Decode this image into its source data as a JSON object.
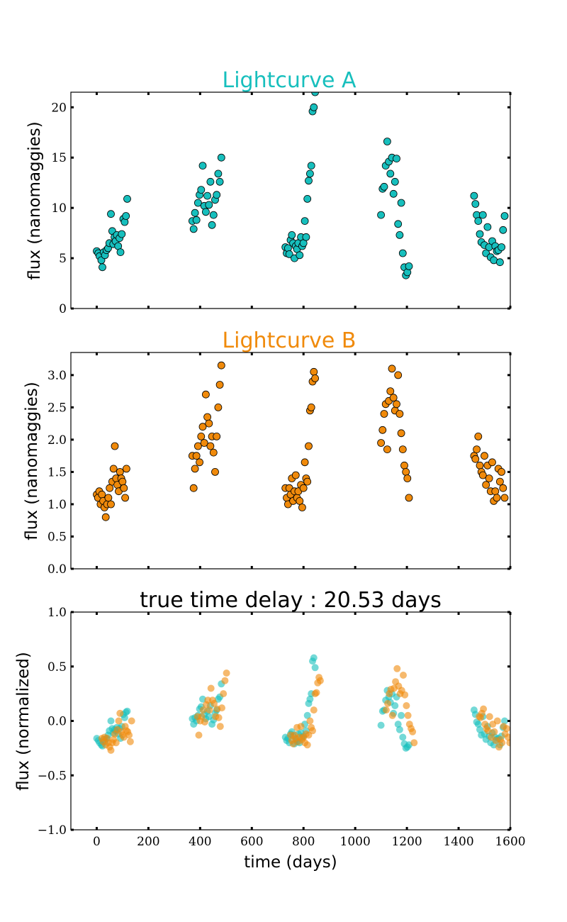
{
  "figure": {
    "background": "#ffffff"
  },
  "colors": {
    "teal": "#17bfbd",
    "orange": "#f08a0b"
  },
  "chart_data": [
    {
      "type": "scatter",
      "title": "Lightcurve A",
      "title_color": "#17bfbd",
      "xlabel": "",
      "ylabel": "flux (nanomaggies)",
      "xlim": [
        -100,
        1600
      ],
      "ylim": [
        0,
        21.5
      ],
      "xticks": [
        0,
        200,
        400,
        600,
        800,
        1000,
        1200,
        1400,
        1600
      ],
      "xtick_labels": [],
      "yticks": [
        0,
        5,
        10,
        15,
        20
      ],
      "ytick_labels": [
        "0",
        "5",
        "10",
        "15",
        "20"
      ],
      "grid": false,
      "series": [
        {
          "marker_fill": "#17bfbd",
          "marker_edge": "#000000",
          "x": [
            0,
            6,
            11,
            18,
            22,
            27,
            32,
            38,
            44,
            49,
            55,
            60,
            64,
            69,
            73,
            78,
            83,
            88,
            92,
            97,
            103,
            108,
            113,
            118,
            370,
            375,
            380,
            386,
            392,
            398,
            404,
            410,
            416,
            422,
            428,
            434,
            440,
            446,
            452,
            458,
            464,
            470,
            476,
            482,
            730,
            735,
            740,
            745,
            750,
            755,
            760,
            765,
            770,
            775,
            780,
            785,
            790,
            795,
            800,
            805,
            810,
            815,
            820,
            825,
            830,
            835,
            840,
            845,
            1100,
            1106,
            1112,
            1118,
            1124,
            1130,
            1136,
            1142,
            1148,
            1154,
            1160,
            1166,
            1172,
            1178,
            1184,
            1190,
            1196,
            1202,
            1208,
            1460,
            1465,
            1470,
            1476,
            1482,
            1488,
            1494,
            1500,
            1506,
            1512,
            1518,
            1524,
            1530,
            1536,
            1542,
            1548,
            1554,
            1560,
            1566,
            1572,
            1578
          ],
          "y": [
            5.7,
            5.5,
            5.2,
            4.8,
            4.1,
            5.6,
            5.3,
            5.8,
            6.0,
            6.5,
            9.4,
            7.7,
            6.4,
            7.1,
            6.7,
            7.3,
            6.2,
            7.0,
            5.6,
            7.4,
            8.9,
            8.6,
            9.2,
            10.9,
            8.7,
            7.9,
            9.5,
            8.8,
            10.5,
            11.3,
            11.8,
            14.2,
            10.2,
            9.6,
            11.2,
            10.3,
            12.6,
            8.3,
            9.3,
            10.8,
            11.3,
            13.4,
            12.6,
            15.0,
            6.1,
            5.5,
            6.0,
            5.4,
            6.8,
            7.3,
            6.5,
            5.0,
            6.2,
            5.9,
            6.5,
            5.3,
            7.1,
            6.2,
            6.5,
            8.7,
            7.1,
            10.9,
            12.7,
            13.4,
            14.2,
            19.6,
            20.0,
            21.5,
            9.3,
            11.9,
            12.1,
            14.2,
            16.6,
            14.6,
            13.4,
            15.0,
            11.4,
            12.6,
            14.9,
            8.4,
            7.3,
            10.5,
            5.5,
            4.1,
            3.3,
            3.6,
            4.2,
            11.2,
            10.4,
            9.3,
            8.7,
            7.4,
            6.6,
            9.3,
            6.3,
            5.5,
            8.1,
            6.1,
            5.1,
            6.7,
            4.8,
            6.2,
            5.7,
            5.8,
            4.6,
            6.1,
            7.8,
            9.2
          ]
        }
      ]
    },
    {
      "type": "scatter",
      "title": "Lightcurve B",
      "title_color": "#f08a0b",
      "xlabel": "",
      "ylabel": "flux (nanomaggies)",
      "xlim": [
        -100,
        1600
      ],
      "ylim": [
        0,
        3.35
      ],
      "xticks": [
        0,
        200,
        400,
        600,
        800,
        1000,
        1200,
        1400,
        1600
      ],
      "xtick_labels": [],
      "yticks": [
        0.0,
        0.5,
        1.0,
        1.5,
        2.0,
        2.5,
        3.0
      ],
      "ytick_labels": [
        "0.0",
        "0.5",
        "1.0",
        "1.5",
        "2.0",
        "2.5",
        "3.0"
      ],
      "grid": false,
      "series": [
        {
          "marker_fill": "#f08a0b",
          "marker_edge": "#000000",
          "x": [
            0,
            5,
            10,
            15,
            20,
            25,
            30,
            35,
            40,
            45,
            50,
            55,
            60,
            65,
            70,
            75,
            80,
            85,
            90,
            95,
            100,
            105,
            110,
            115,
            370,
            375,
            380,
            386,
            392,
            398,
            404,
            410,
            416,
            422,
            428,
            434,
            440,
            446,
            452,
            458,
            464,
            470,
            476,
            482,
            730,
            735,
            740,
            745,
            750,
            755,
            760,
            765,
            770,
            775,
            780,
            785,
            790,
            795,
            800,
            805,
            810,
            815,
            820,
            825,
            830,
            835,
            840,
            845,
            1100,
            1106,
            1112,
            1118,
            1124,
            1130,
            1136,
            1142,
            1148,
            1154,
            1160,
            1166,
            1172,
            1178,
            1184,
            1190,
            1196,
            1202,
            1208,
            1460,
            1465,
            1470,
            1476,
            1482,
            1488,
            1494,
            1500,
            1506,
            1512,
            1518,
            1524,
            1530,
            1536,
            1542,
            1548,
            1554,
            1560,
            1566,
            1572,
            1578
          ],
          "y": [
            1.15,
            1.1,
            1.2,
            1.0,
            1.15,
            1.05,
            0.95,
            0.8,
            1.0,
            1.1,
            1.25,
            1.0,
            1.35,
            1.55,
            1.9,
            1.4,
            1.3,
            1.2,
            1.5,
            1.4,
            1.35,
            1.25,
            1.1,
            1.55,
            1.75,
            1.25,
            1.55,
            1.75,
            1.9,
            1.65,
            2.05,
            2.2,
            1.95,
            2.7,
            2.35,
            2.25,
            1.9,
            2.05,
            1.8,
            1.5,
            2.05,
            2.5,
            2.85,
            3.15,
            1.25,
            1.1,
            1.0,
            1.25,
            1.15,
            1.4,
            1.05,
            1.2,
            1.45,
            1.1,
            1.2,
            1.05,
            1.3,
            0.95,
            1.25,
            1.65,
            1.4,
            1.35,
            1.9,
            2.45,
            2.5,
            2.9,
            3.05,
            2.95,
            1.95,
            2.15,
            2.4,
            2.55,
            1.85,
            2.6,
            2.75,
            3.1,
            2.65,
            2.45,
            2.55,
            3.0,
            2.4,
            2.1,
            1.85,
            1.6,
            1.5,
            1.4,
            1.1,
            1.75,
            1.7,
            1.85,
            2.05,
            1.6,
            1.5,
            1.45,
            1.75,
            1.3,
            1.6,
            1.4,
            1.2,
            1.65,
            1.05,
            1.2,
            1.1,
            1.55,
            1.35,
            1.5,
            1.25,
            1.1
          ]
        }
      ]
    },
    {
      "type": "scatter",
      "title": "true time delay : 20.53 days",
      "title_color": "#000000",
      "xlabel": "time (days)",
      "ylabel": "flux (normalized)",
      "xlim": [
        -100,
        1600
      ],
      "ylim": [
        -1.0,
        1.0
      ],
      "xticks": [
        0,
        200,
        400,
        600,
        800,
        1000,
        1200,
        1400,
        1600
      ],
      "xtick_labels": [
        "0",
        "200",
        "400",
        "600",
        "800",
        "1000",
        "1200",
        "1400",
        "1600"
      ],
      "yticks": [
        -1.0,
        -0.5,
        0.0,
        0.5,
        1.0
      ],
      "ytick_labels": [
        "−1.0",
        "−0.5",
        "0.0",
        "0.5",
        "1.0"
      ],
      "grid": false,
      "series": [
        {
          "marker_fill": "#17bfbd",
          "alpha": 0.6,
          "x": [
            0,
            6,
            11,
            18,
            22,
            27,
            32,
            38,
            44,
            49,
            55,
            60,
            64,
            69,
            73,
            78,
            83,
            88,
            92,
            97,
            103,
            108,
            113,
            118,
            370,
            375,
            380,
            386,
            392,
            398,
            404,
            410,
            416,
            422,
            428,
            434,
            440,
            446,
            452,
            458,
            464,
            470,
            476,
            482,
            730,
            735,
            740,
            745,
            750,
            755,
            760,
            765,
            770,
            775,
            780,
            785,
            790,
            795,
            800,
            805,
            810,
            815,
            820,
            825,
            830,
            835,
            840,
            845,
            1100,
            1106,
            1112,
            1118,
            1124,
            1130,
            1136,
            1142,
            1148,
            1154,
            1160,
            1166,
            1172,
            1178,
            1184,
            1190,
            1196,
            1202,
            1208,
            1460,
            1465,
            1470,
            1476,
            1482,
            1488,
            1494,
            1500,
            1506,
            1512,
            1518,
            1524,
            1530,
            1536,
            1542,
            1548,
            1554,
            1560,
            1566,
            1572,
            1578
          ],
          "y": [
            -0.16,
            -0.18,
            -0.2,
            -0.22,
            -0.23,
            -0.17,
            -0.19,
            -0.16,
            -0.13,
            -0.09,
            0.0,
            -0.07,
            -0.11,
            -0.08,
            -0.09,
            -0.06,
            -0.12,
            -0.07,
            -0.16,
            -0.05,
            0.06,
            0.03,
            0.08,
            0.09,
            0.02,
            -0.03,
            0.03,
            0.0,
            0.05,
            0.11,
            0.13,
            0.2,
            0.06,
            0.02,
            0.09,
            0.04,
            0.14,
            -0.03,
            0.01,
            0.07,
            0.1,
            0.2,
            0.22,
            0.34,
            -0.15,
            -0.18,
            -0.16,
            -0.2,
            -0.12,
            -0.1,
            -0.14,
            -0.21,
            -0.17,
            -0.19,
            -0.12,
            -0.2,
            -0.11,
            -0.15,
            -0.14,
            -0.03,
            -0.09,
            0.05,
            0.16,
            0.2,
            0.25,
            0.55,
            0.58,
            0.49,
            -0.04,
            0.09,
            0.1,
            0.19,
            0.28,
            0.22,
            0.17,
            0.25,
            0.07,
            0.14,
            0.22,
            -0.03,
            -0.08,
            0.05,
            -0.15,
            -0.21,
            -0.25,
            -0.24,
            -0.22,
            0.1,
            0.06,
            -0.01,
            -0.03,
            -0.08,
            -0.13,
            0.04,
            -0.12,
            -0.17,
            -0.05,
            -0.14,
            -0.2,
            -0.11,
            -0.22,
            -0.15,
            -0.17,
            -0.16,
            -0.22,
            -0.14,
            -0.06,
            0.0
          ]
        },
        {
          "marker_fill": "#f08a0b",
          "alpha": 0.6,
          "x": [
            20,
            25,
            30,
            35,
            40,
            45,
            50,
            55,
            60,
            65,
            70,
            75,
            80,
            85,
            90,
            95,
            100,
            105,
            110,
            115,
            120,
            125,
            130,
            135,
            390,
            395,
            400,
            406,
            412,
            418,
            424,
            430,
            436,
            442,
            448,
            454,
            460,
            466,
            472,
            478,
            484,
            490,
            496,
            502,
            750,
            755,
            760,
            765,
            770,
            775,
            780,
            785,
            790,
            795,
            800,
            805,
            810,
            815,
            820,
            825,
            830,
            835,
            840,
            845,
            850,
            855,
            860,
            865,
            1120,
            1126,
            1132,
            1138,
            1144,
            1150,
            1156,
            1162,
            1168,
            1174,
            1180,
            1186,
            1192,
            1198,
            1204,
            1210,
            1216,
            1222,
            1228,
            1480,
            1485,
            1490,
            1496,
            1502,
            1508,
            1514,
            1520,
            1526,
            1532,
            1538,
            1544,
            1550,
            1556,
            1562,
            1568,
            1574,
            1580,
            1586,
            1592,
            1598
          ],
          "y": [
            -0.16,
            -0.19,
            -0.15,
            -0.22,
            -0.16,
            -0.2,
            -0.24,
            -0.27,
            -0.2,
            -0.17,
            -0.12,
            -0.2,
            -0.08,
            0.0,
            0.07,
            -0.1,
            -0.13,
            -0.15,
            -0.05,
            -0.09,
            -0.1,
            -0.13,
            -0.19,
            0.0,
            0.04,
            -0.13,
            0.0,
            0.04,
            0.1,
            -0.01,
            0.15,
            0.19,
            0.1,
            0.3,
            0.19,
            0.16,
            0.04,
            0.11,
            0.03,
            -0.05,
            0.12,
            0.25,
            0.37,
            0.44,
            -0.13,
            -0.18,
            -0.21,
            -0.13,
            -0.16,
            -0.06,
            -0.19,
            -0.15,
            -0.05,
            -0.17,
            -0.15,
            -0.2,
            -0.12,
            -0.22,
            -0.13,
            0.0,
            -0.06,
            -0.09,
            0.1,
            0.25,
            0.26,
            0.35,
            0.4,
            0.37,
            0.1,
            0.16,
            0.25,
            0.29,
            0.05,
            0.3,
            0.36,
            0.48,
            0.32,
            0.25,
            0.28,
            0.42,
            0.24,
            0.14,
            0.05,
            -0.03,
            -0.07,
            -0.1,
            -0.2,
            0.04,
            0.03,
            0.07,
            0.11,
            -0.03,
            -0.07,
            -0.09,
            0.04,
            -0.15,
            -0.03,
            -0.1,
            -0.18,
            0.0,
            -0.24,
            -0.17,
            -0.2,
            -0.05,
            -0.12,
            -0.07,
            -0.15,
            -0.2
          ]
        }
      ]
    }
  ]
}
